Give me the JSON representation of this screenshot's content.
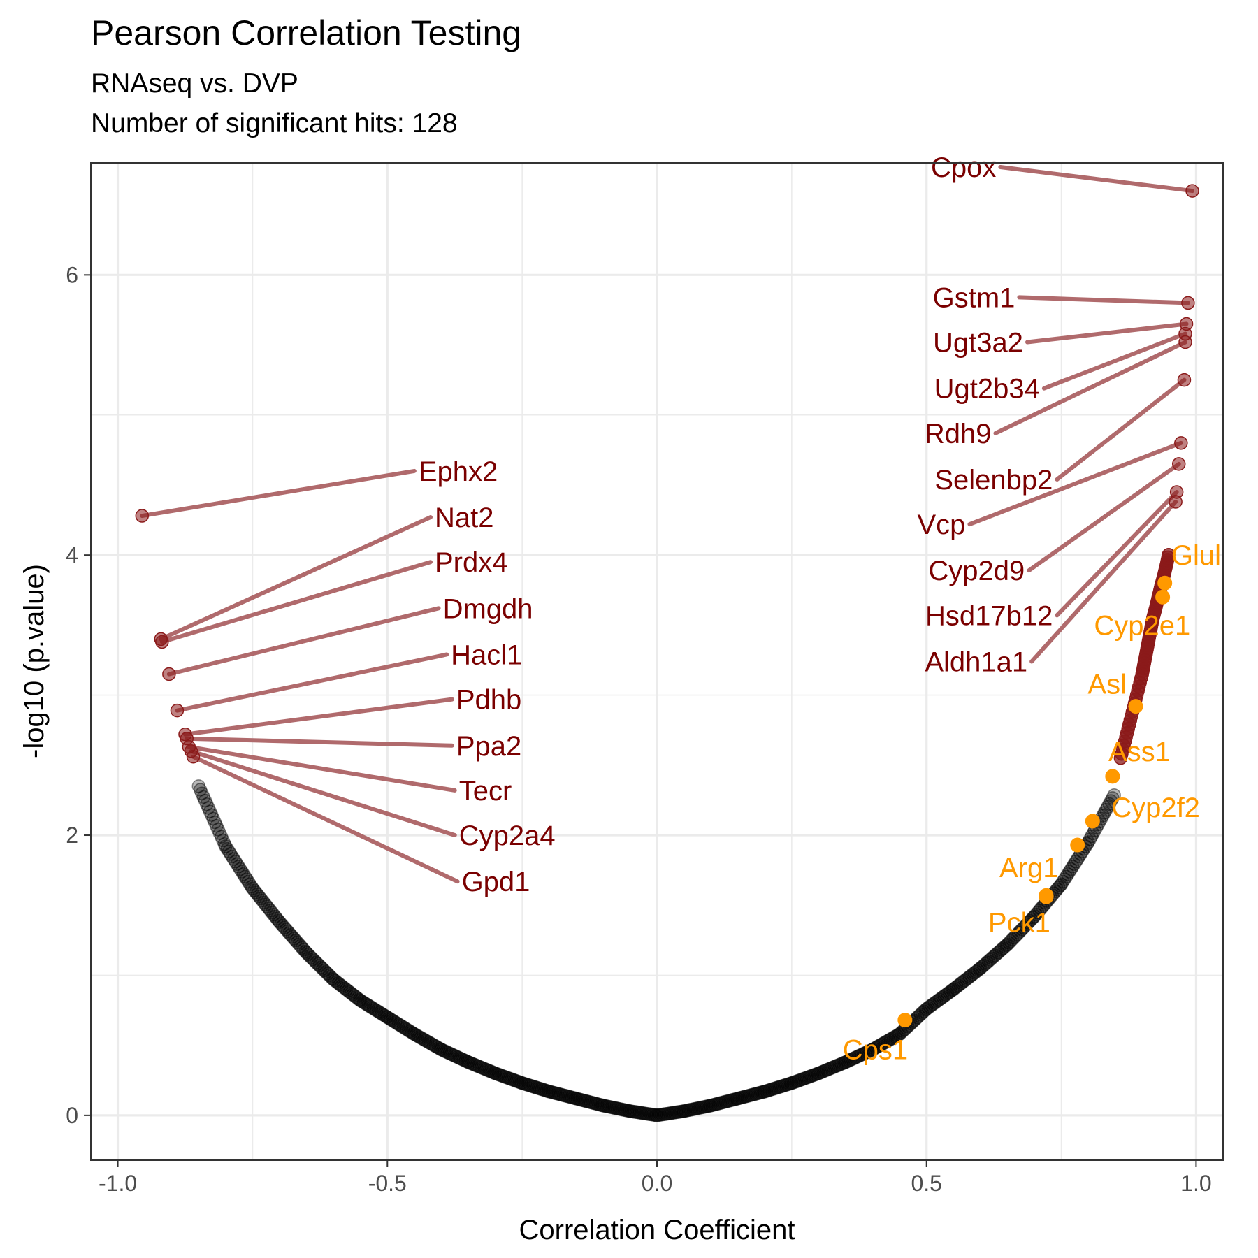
{
  "chart_data": {
    "type": "scatter",
    "title": "Pearson Correlation Testing",
    "subtitle": [
      "RNAseq vs. DVP",
      "Number of significant hits: 128"
    ],
    "xlabel": "Correlation Coefficient",
    "ylabel": "-log10 (p.value)",
    "xlim": [
      -1.05,
      1.05
    ],
    "ylim": [
      -0.32,
      6.8
    ],
    "x_ticks": [
      -1.0,
      -0.5,
      0.0,
      0.5,
      1.0
    ],
    "x_tick_labels": [
      "-1.0",
      "-0.5",
      "0.0",
      "0.5",
      "1.0"
    ],
    "y_ticks": [
      0,
      2,
      4,
      6
    ],
    "y_tick_labels": [
      "0",
      "2",
      "4",
      "6"
    ],
    "grid": true,
    "colors": {
      "background_points": "#000000",
      "significant": "#8b1a1a",
      "label_text": "#7a0000",
      "connector": "#b06a6c",
      "highlight": "#ff9900",
      "grid": "#ebebeb"
    },
    "background_curve": {
      "description_points": "curve of non-significant correlations",
      "negative_x": [
        -0.85,
        -0.8,
        -0.75,
        -0.7,
        -0.65,
        -0.6,
        -0.55,
        -0.5,
        -0.45,
        -0.4,
        -0.35,
        -0.3,
        -0.25,
        -0.2,
        -0.15,
        -0.1,
        -0.05,
        0.0
      ],
      "negative_y": [
        2.35,
        1.92,
        1.62,
        1.38,
        1.16,
        0.97,
        0.82,
        0.7,
        0.58,
        0.47,
        0.38,
        0.3,
        0.23,
        0.17,
        0.12,
        0.07,
        0.03,
        0.0
      ],
      "positive_x": [
        0.0,
        0.05,
        0.1,
        0.15,
        0.2,
        0.25,
        0.3,
        0.35,
        0.4,
        0.45,
        0.5,
        0.55,
        0.6,
        0.65,
        0.7,
        0.75,
        0.8,
        0.85
      ],
      "positive_y": [
        0.0,
        0.03,
        0.07,
        0.12,
        0.17,
        0.23,
        0.3,
        0.38,
        0.47,
        0.58,
        0.76,
        0.9,
        1.05,
        1.22,
        1.42,
        1.65,
        1.95,
        2.3
      ]
    },
    "significant_negative": [
      {
        "label": "Ephx2",
        "x": -0.955,
        "y": 4.28,
        "label_x": -0.45,
        "label_y": 4.6
      },
      {
        "label": "Nat2",
        "x": -0.92,
        "y": 3.4,
        "label_x": -0.42,
        "label_y": 4.27
      },
      {
        "label": "Prdx4",
        "x": -0.918,
        "y": 3.38,
        "label_x": -0.42,
        "label_y": 3.95
      },
      {
        "label": "Dmgdh",
        "x": -0.905,
        "y": 3.15,
        "label_x": -0.405,
        "label_y": 3.62
      },
      {
        "label": "Hacl1",
        "x": -0.89,
        "y": 2.89,
        "label_x": -0.39,
        "label_y": 3.29
      },
      {
        "label": "Pdhb",
        "x": -0.875,
        "y": 2.72,
        "label_x": -0.38,
        "label_y": 2.97
      },
      {
        "label": "Ppa2",
        "x": -0.872,
        "y": 2.69,
        "label_x": -0.38,
        "label_y": 2.64
      },
      {
        "label": "Tecr",
        "x": -0.868,
        "y": 2.63,
        "label_x": -0.375,
        "label_y": 2.32
      },
      {
        "label": "Cyp2a4",
        "x": -0.864,
        "y": 2.6,
        "label_x": -0.375,
        "label_y": 2.0
      },
      {
        "label": "Gpd1",
        "x": -0.86,
        "y": 2.56,
        "label_x": -0.37,
        "label_y": 1.67
      }
    ],
    "significant_positive": [
      {
        "label": "Cpox",
        "x": 0.993,
        "y": 6.6,
        "label_x": 0.637,
        "label_y": 6.77
      },
      {
        "label": "Gstm1",
        "x": 0.985,
        "y": 5.8,
        "label_x": 0.672,
        "label_y": 5.84
      },
      {
        "label": "Ugt3a2",
        "x": 0.982,
        "y": 5.65,
        "label_x": 0.687,
        "label_y": 5.52
      },
      {
        "label": "Ugt2b34",
        "x": 0.98,
        "y": 5.58,
        "label_x": 0.718,
        "label_y": 5.19
      },
      {
        "label": "Rdh9",
        "x": 0.98,
        "y": 5.52,
        "label_x": 0.628,
        "label_y": 4.87
      },
      {
        "label": "Selenbp2",
        "x": 0.978,
        "y": 5.25,
        "label_x": 0.742,
        "label_y": 4.54
      },
      {
        "label": "Vcp",
        "x": 0.972,
        "y": 4.8,
        "label_x": 0.58,
        "label_y": 4.22
      },
      {
        "label": "Cyp2d9",
        "x": 0.968,
        "y": 4.65,
        "label_x": 0.69,
        "label_y": 3.89
      },
      {
        "label": "Hsd17b12",
        "x": 0.964,
        "y": 4.45,
        "label_x": 0.742,
        "label_y": 3.57
      },
      {
        "label": "Aldh1a1",
        "x": 0.962,
        "y": 4.38,
        "label_x": 0.695,
        "label_y": 3.24
      }
    ],
    "significant_positive_dense": {
      "x": [
        0.86,
        0.87,
        0.88,
        0.89,
        0.9,
        0.905,
        0.91,
        0.915,
        0.92,
        0.925,
        0.93,
        0.935,
        0.94,
        0.945,
        0.95
      ],
      "y": [
        2.55,
        2.7,
        2.85,
        3.0,
        3.15,
        3.25,
        3.35,
        3.45,
        3.55,
        3.62,
        3.7,
        3.78,
        3.85,
        3.93,
        4.02
      ]
    },
    "highlighted": [
      {
        "label": "Glul",
        "x": 0.942,
        "y": 3.8,
        "label_x": 1.0,
        "label_y": 4.0
      },
      {
        "label": "Cyp2e1",
        "x": 0.938,
        "y": 3.7,
        "label_x": 0.9,
        "label_y": 3.5
      },
      {
        "label": "Asl",
        "x": 0.888,
        "y": 2.92,
        "label_x": 0.835,
        "label_y": 3.08
      },
      {
        "label": "Ass1",
        "x": 0.845,
        "y": 2.42,
        "label_x": 0.895,
        "label_y": 2.6
      },
      {
        "label": "Cyp2f2",
        "x": 0.808,
        "y": 2.1,
        "label_x": 0.925,
        "label_y": 2.2
      },
      {
        "label": "",
        "x": 0.78,
        "y": 1.93
      },
      {
        "label": "Arg1",
        "x": 0.722,
        "y": 1.57,
        "label_x": 0.69,
        "label_y": 1.77
      },
      {
        "label": "Pck1",
        "x": 0.722,
        "y": 1.56,
        "label_x": 0.672,
        "label_y": 1.38
      },
      {
        "label": "Cps1",
        "x": 0.46,
        "y": 0.68,
        "label_x": 0.405,
        "label_y": 0.47
      }
    ]
  }
}
